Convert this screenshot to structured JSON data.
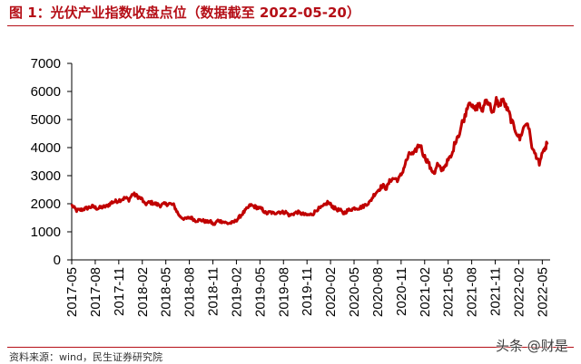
{
  "header": {
    "title": "图 1：光伏产业指数收盘点位（数据截至 2022-05-20）"
  },
  "footer": {
    "source": "资料来源：wind，民生证券研究院",
    "watermark": "头条 @财是"
  },
  "chart_data": {
    "type": "line",
    "title": "图 1：光伏产业指数收盘点位（数据截至 2022-05-20）",
    "xlabel": "",
    "ylabel": "",
    "ylim": [
      0,
      7000
    ],
    "yticks": [
      0,
      1000,
      2000,
      3000,
      4000,
      5000,
      6000,
      7000
    ],
    "ytick_labels": [
      "0",
      "1000",
      "2000",
      "3000",
      "4000",
      "5000",
      "6000",
      "7000"
    ],
    "xlim": [
      "2017-05",
      "2022-06"
    ],
    "xtick_labels": [
      "2017-05",
      "2017-08",
      "2017-11",
      "2018-02",
      "2018-05",
      "2018-08",
      "2018-11",
      "2019-02",
      "2019-05",
      "2019-08",
      "2019-11",
      "2020-02",
      "2020-05",
      "2020-08",
      "2020-11",
      "2021-02",
      "2021-05",
      "2021-08",
      "2021-11",
      "2022-02",
      "2022-05"
    ],
    "grid": false,
    "legend": "none",
    "series_color": "#c00000",
    "series": [
      {
        "x": [
          "2017-05-02",
          "2017-05-20",
          "2017-06-10",
          "2017-07-01",
          "2017-07-20",
          "2017-08-10",
          "2017-08-25",
          "2017-09-15",
          "2017-10-05",
          "2017-10-25",
          "2017-11-10",
          "2017-11-25",
          "2017-12-10",
          "2017-12-25",
          "2018-01-15",
          "2018-02-01",
          "2018-02-10",
          "2018-03-01",
          "2018-03-20",
          "2018-04-10",
          "2018-04-25",
          "2018-05-15",
          "2018-06-01",
          "2018-06-15",
          "2018-06-25",
          "2018-07-15",
          "2018-08-05",
          "2018-08-25",
          "2018-09-15",
          "2018-10-10",
          "2018-10-20",
          "2018-11-05",
          "2018-11-20",
          "2018-12-10",
          "2018-12-28",
          "2019-01-20",
          "2019-02-05",
          "2019-02-25",
          "2019-03-10",
          "2019-03-25",
          "2019-04-10",
          "2019-04-25",
          "2019-05-10",
          "2019-05-25",
          "2019-06-10",
          "2019-06-25",
          "2019-07-10",
          "2019-07-25",
          "2019-08-10",
          "2019-08-25",
          "2019-09-10",
          "2019-09-25",
          "2019-10-10",
          "2019-10-25",
          "2019-11-10",
          "2019-11-25",
          "2019-12-10",
          "2019-12-25",
          "2020-01-10",
          "2020-01-20",
          "2020-02-04",
          "2020-02-15",
          "2020-02-25",
          "2020-03-10",
          "2020-03-20",
          "2020-04-05",
          "2020-04-20",
          "2020-05-05",
          "2020-05-20",
          "2020-06-05",
          "2020-06-20",
          "2020-07-01",
          "2020-07-10",
          "2020-07-20",
          "2020-08-05",
          "2020-08-20",
          "2020-09-05",
          "2020-09-20",
          "2020-10-05",
          "2020-10-20",
          "2020-11-05",
          "2020-11-20",
          "2020-12-05",
          "2020-12-20",
          "2021-01-05",
          "2021-01-15",
          "2021-01-25",
          "2021-02-05",
          "2021-02-15",
          "2021-02-25",
          "2021-03-05",
          "2021-03-10",
          "2021-03-20",
          "2021-04-05",
          "2021-04-15",
          "2021-04-25",
          "2021-05-05",
          "2021-05-15",
          "2021-05-25",
          "2021-06-05",
          "2021-06-15",
          "2021-06-25",
          "2021-07-05",
          "2021-07-15",
          "2021-07-25",
          "2021-08-05",
          "2021-08-15",
          "2021-08-25",
          "2021-09-01",
          "2021-09-10",
          "2021-09-20",
          "2021-09-25",
          "2021-10-05",
          "2021-10-15",
          "2021-10-25",
          "2021-11-05",
          "2021-11-10",
          "2021-11-20",
          "2021-11-25",
          "2021-12-05",
          "2021-12-15",
          "2021-12-25",
          "2022-01-05",
          "2022-01-15",
          "2022-01-25",
          "2022-02-05",
          "2022-02-15",
          "2022-02-25",
          "2022-03-05",
          "2022-03-15",
          "2022-03-25",
          "2022-04-05",
          "2022-04-15",
          "2022-04-20",
          "2022-04-27",
          "2022-05-05",
          "2022-05-10",
          "2022-05-15",
          "2022-05-20"
        ],
        "y": [
          1930,
          1760,
          1790,
          1850,
          1900,
          1830,
          1870,
          1910,
          2050,
          2100,
          2150,
          2200,
          2150,
          2350,
          2250,
          2150,
          1980,
          2050,
          2000,
          1940,
          1980,
          2000,
          1950,
          1700,
          1550,
          1450,
          1520,
          1400,
          1420,
          1350,
          1380,
          1250,
          1400,
          1360,
          1300,
          1330,
          1450,
          1650,
          1800,
          1950,
          1900,
          1850,
          1800,
          1650,
          1700,
          1650,
          1720,
          1690,
          1700,
          1580,
          1650,
          1700,
          1650,
          1600,
          1600,
          1650,
          1800,
          1850,
          1950,
          2050,
          1950,
          1850,
          1800,
          1750,
          1650,
          1750,
          1800,
          1850,
          1850,
          1900,
          2000,
          2050,
          2200,
          2350,
          2500,
          2650,
          2550,
          2850,
          2900,
          2850,
          3100,
          3500,
          3800,
          3750,
          4050,
          4100,
          3800,
          3600,
          3500,
          3200,
          3150,
          3100,
          3400,
          3200,
          3300,
          3450,
          3600,
          3700,
          4100,
          4400,
          4500,
          4900,
          5100,
          5500,
          5700,
          5400,
          5350,
          5500,
          5600,
          5200,
          5600,
          5700,
          5650,
          5400,
          5200,
          5700,
          5600,
          5500,
          5700,
          5600,
          5400,
          5200,
          4900,
          4700,
          4500,
          4300,
          4600,
          4800,
          4900,
          4400,
          3900,
          3750,
          3600,
          3300,
          3700,
          3900,
          3800,
          4050,
          4150
        ]
      }
    ]
  }
}
